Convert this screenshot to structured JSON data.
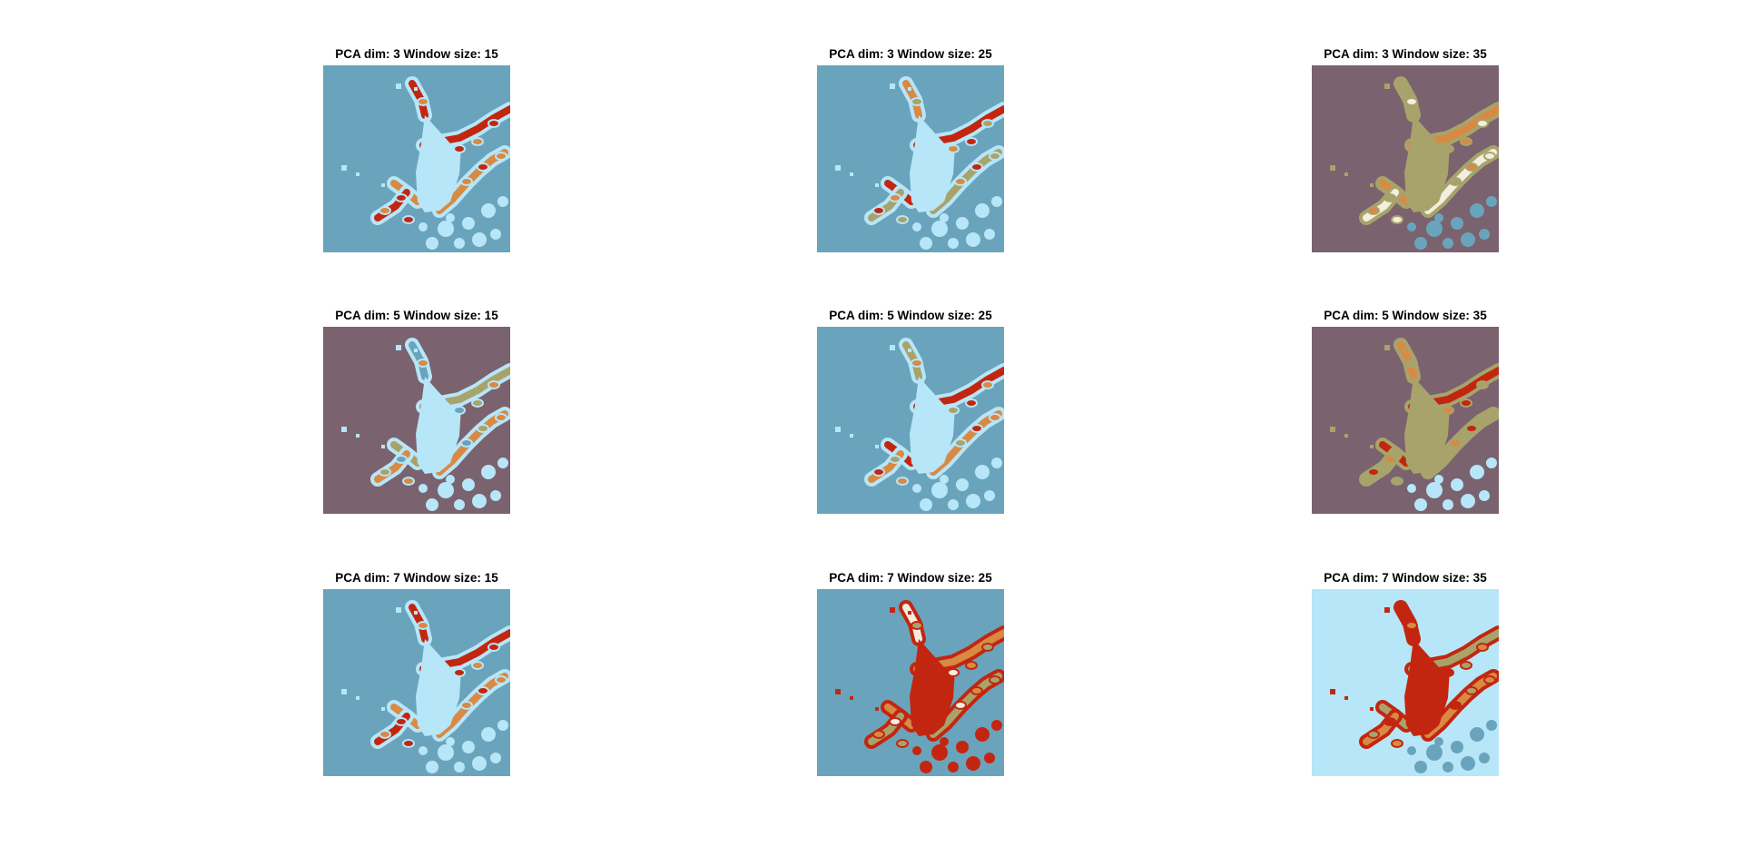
{
  "colors": {
    "steel_blue": "#6aa4bc",
    "light_blue": "#b7e6f8",
    "red": "#c32610",
    "olive": "#a8a36a",
    "orange": "#d88a44",
    "mauve": "#7b626f",
    "pale": "#f2eee0"
  },
  "chart_data": [
    {
      "type": "heatmap",
      "title": "PCA dim: 3 Window size: 15",
      "background": "steel_blue",
      "body": "light_blue",
      "arm_colors": [
        "red",
        "orange"
      ],
      "speckle": "light_blue"
    },
    {
      "type": "heatmap",
      "title": "PCA dim: 3 Window size: 25",
      "background": "steel_blue",
      "body": "light_blue",
      "arm_colors": [
        "red",
        "olive",
        "orange"
      ],
      "speckle": "light_blue"
    },
    {
      "type": "heatmap",
      "title": "PCA dim: 3 Window size: 35",
      "background": "mauve",
      "body": "olive",
      "arm_colors": [
        "orange",
        "pale",
        "olive"
      ],
      "speckle": "steel_blue"
    },
    {
      "type": "heatmap",
      "title": "PCA dim: 5 Window size: 15",
      "background": "mauve",
      "body": "light_blue",
      "arm_colors": [
        "olive",
        "orange",
        "steel_blue"
      ],
      "speckle": "light_blue"
    },
    {
      "type": "heatmap",
      "title": "PCA dim: 5 Window size: 25",
      "background": "steel_blue",
      "body": "light_blue",
      "arm_colors": [
        "red",
        "orange",
        "olive"
      ],
      "speckle": "light_blue"
    },
    {
      "type": "heatmap",
      "title": "PCA dim: 5 Window size: 35",
      "background": "mauve",
      "body": "olive",
      "arm_colors": [
        "red",
        "olive",
        "orange"
      ],
      "speckle": "light_blue"
    },
    {
      "type": "heatmap",
      "title": "PCA dim: 7 Window size: 15",
      "background": "steel_blue",
      "body": "light_blue",
      "arm_colors": [
        "red",
        "orange"
      ],
      "speckle": "light_blue"
    },
    {
      "type": "heatmap",
      "title": "PCA dim: 7 Window size: 25",
      "background": "steel_blue",
      "body": "red",
      "arm_colors": [
        "orange",
        "olive",
        "pale"
      ],
      "speckle": "red"
    },
    {
      "type": "heatmap",
      "title": "PCA dim: 7 Window size: 35",
      "background": "light_blue",
      "body": "red",
      "arm_colors": [
        "olive",
        "orange",
        "red"
      ],
      "speckle": "steel_blue"
    }
  ]
}
